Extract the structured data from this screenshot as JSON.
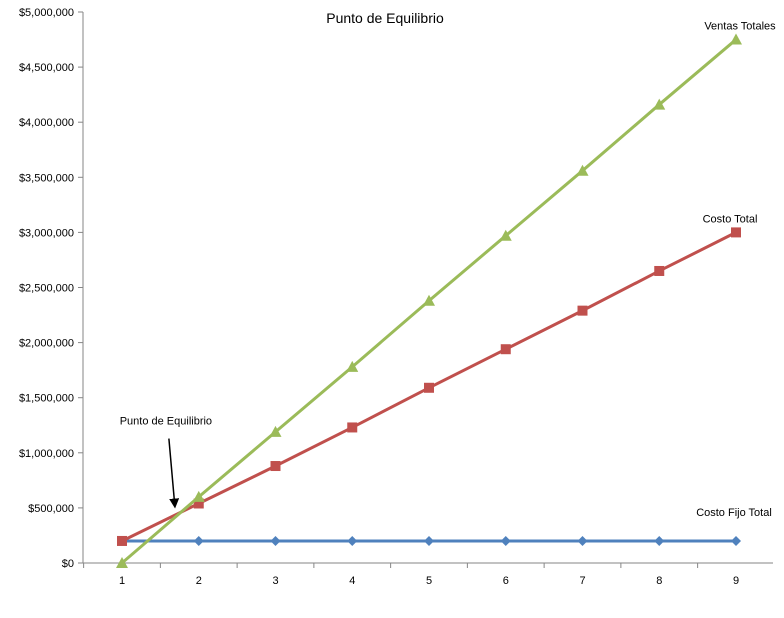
{
  "chart_data": {
    "type": "line",
    "title": "Punto de Equilibrio",
    "xlabel": "",
    "ylabel": "",
    "x": [
      1,
      2,
      3,
      4,
      5,
      6,
      7,
      8,
      9
    ],
    "x_tick_labels": [
      "1",
      "2",
      "3",
      "4",
      "5",
      "6",
      "7",
      "8",
      "9"
    ],
    "ylim": [
      0,
      5000000
    ],
    "y_ticks": [
      0,
      500000,
      1000000,
      1500000,
      2000000,
      2500000,
      3000000,
      3500000,
      4000000,
      4500000,
      5000000
    ],
    "y_tick_labels": [
      "$0",
      "$500,000",
      "$1,000,000",
      "$1,500,000",
      "$2,000,000",
      "$2,500,000",
      "$3,000,000",
      "$3,500,000",
      "$4,000,000",
      "$4,500,000",
      "$5,000,000"
    ],
    "grid": false,
    "legend": "none",
    "series": [
      {
        "name": "Costo Fijo Total",
        "color": "#4F81BD",
        "marker": "diamond",
        "values": [
          200000,
          200000,
          200000,
          200000,
          200000,
          200000,
          200000,
          200000,
          200000
        ]
      },
      {
        "name": "Costo Total",
        "color": "#C0504D",
        "marker": "square",
        "values": [
          200000,
          540000,
          880000,
          1230000,
          1590000,
          1940000,
          2290000,
          2650000,
          3000000
        ]
      },
      {
        "name": "Ventas Totales",
        "color": "#9BBB59",
        "marker": "triangle",
        "values": [
          0,
          600000,
          1190000,
          1780000,
          2380000,
          2970000,
          3560000,
          4160000,
          4750000
        ]
      }
    ],
    "annotations": [
      {
        "text": "Punto de Equilibrio",
        "arrow": true,
        "target_x": 1.65,
        "target_y": 440000
      }
    ]
  }
}
